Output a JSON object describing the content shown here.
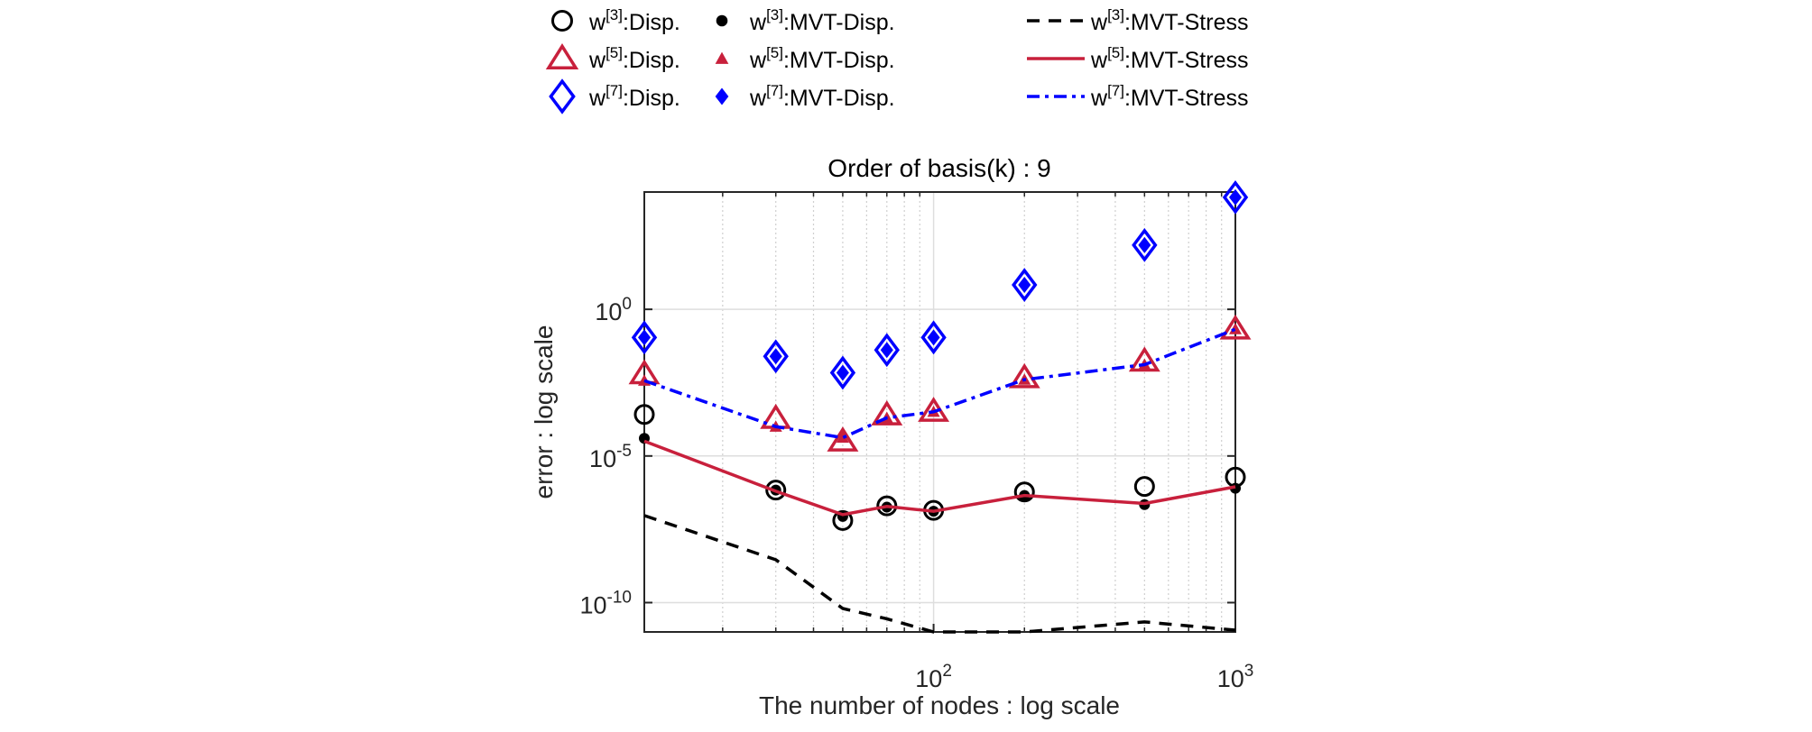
{
  "chart_data": {
    "type": "scatter",
    "title": "Order of basis(k) : 9",
    "xlabel": "The number of nodes : log scale",
    "ylabel": "error : log scale",
    "xscale": "log",
    "yscale": "log",
    "xlim": [
      11,
      1000
    ],
    "ylim": [
      1e-11,
      10000.0
    ],
    "grid": true,
    "legend_placement": "top-outside",
    "x_ticks": [
      {
        "value": 100,
        "base": "10",
        "exp": "2"
      },
      {
        "value": 1000,
        "base": "10",
        "exp": "3"
      }
    ],
    "y_ticks": [
      {
        "value": 1e-10,
        "base": "10",
        "exp": "-10"
      },
      {
        "value": 1e-05,
        "base": "10",
        "exp": "-5"
      },
      {
        "value": 1,
        "base": "10",
        "exp": "0"
      }
    ],
    "x": [
      11,
      30,
      50,
      70,
      100,
      200,
      500,
      1000
    ],
    "series": [
      {
        "name": "w[3]:Disp.",
        "base": "w",
        "sup": "[3]",
        "rest": ":Disp.",
        "style": "open-circle",
        "color": "#000000",
        "values": [
          0.00026,
          6.9e-07,
          6.3e-08,
          2e-07,
          1.4e-07,
          5.9e-07,
          9.1e-07,
          1.9e-06
        ]
      },
      {
        "name": "w[5]:Disp.",
        "base": "w",
        "sup": "[5]",
        "rest": ":Disp.",
        "style": "open-triangle",
        "color": "#c8203c",
        "values": [
          0.0063,
          0.00019,
          3.2e-05,
          0.00025,
          0.00033,
          0.0046,
          0.017,
          0.21
        ]
      },
      {
        "name": "w[7]:Disp.",
        "base": "w",
        "sup": "[7]",
        "rest": ":Disp.",
        "style": "open-diamond",
        "color": "#0000ff",
        "values": [
          0.11,
          0.025,
          0.0069,
          0.041,
          0.11,
          6.8,
          155,
          6600
        ]
      },
      {
        "name": "w[3]:MVT-Disp.",
        "base": "w",
        "sup": "[3]",
        "rest": ":MVT-Disp.",
        "style": "filled-circle",
        "color": "#000000",
        "values": [
          4e-05,
          6.9e-07,
          8.7e-08,
          1.8e-07,
          1.3e-07,
          4.5e-07,
          2.2e-07,
          7.9e-07
        ]
      },
      {
        "name": "w[5]:MVT-Disp.",
        "base": "w",
        "sup": "[5]",
        "rest": ":MVT-Disp.",
        "style": "filled-triangle",
        "color": "#c8203c",
        "values": [
          0.0037,
          0.0001,
          4.2e-05,
          0.0002,
          0.00032,
          0.004,
          0.013,
          0.21
        ]
      },
      {
        "name": "w[7]:MVT-Disp.",
        "base": "w",
        "sup": "[7]",
        "rest": ":MVT-Disp.",
        "style": "filled-diamond",
        "color": "#0000ff",
        "values": [
          0.11,
          0.025,
          0.0069,
          0.041,
          0.11,
          6.8,
          155,
          6600
        ]
      },
      {
        "name": "w[3]:MVT-Stress",
        "base": "w",
        "sup": "[3]",
        "rest": ":MVT-Stress",
        "style": "dashed-line",
        "color": "#000000",
        "values": [
          9.3e-08,
          2.9e-09,
          6.3e-11,
          2.8e-11,
          1e-11,
          1e-11,
          2.2e-11,
          1.15e-11
        ]
      },
      {
        "name": "w[5]:MVT-Stress",
        "base": "w",
        "sup": "[5]",
        "rest": ":MVT-Stress",
        "style": "solid-line",
        "color": "#c8203c",
        "values": [
          3.2e-05,
          6.3e-07,
          1e-07,
          1.9e-07,
          1.3e-07,
          4.5e-07,
          2.4e-07,
          8.9e-07
        ]
      },
      {
        "name": "w[7]:MVT-Stress",
        "base": "w",
        "sup": "[7]",
        "rest": ":MVT-Stress",
        "style": "dashdot-line",
        "color": "#0000ff",
        "values": [
          0.0037,
          0.0001,
          4.2e-05,
          0.0002,
          0.00032,
          0.004,
          0.013,
          0.21
        ]
      }
    ]
  }
}
